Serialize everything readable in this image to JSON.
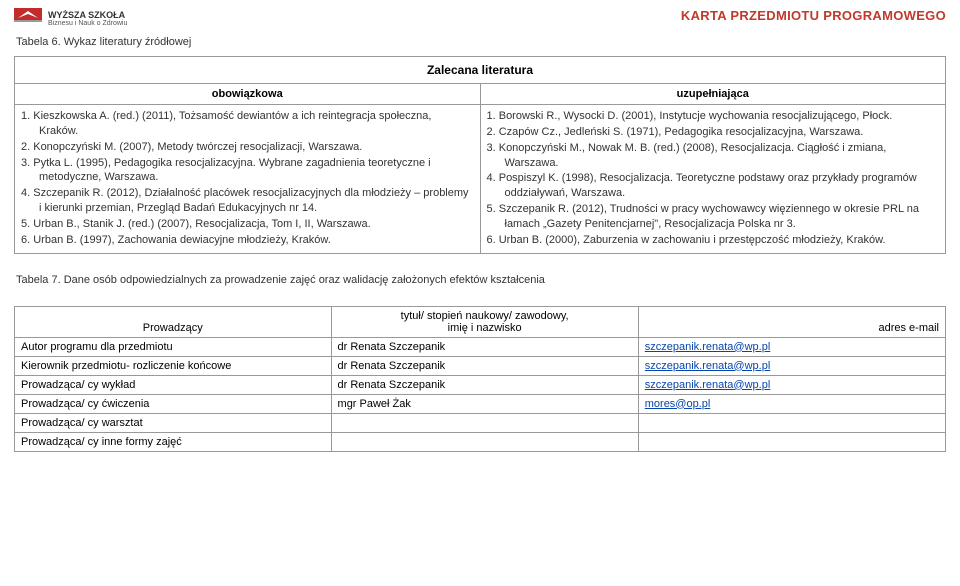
{
  "header": {
    "logo_line1": "WYŻSZA SZKOŁA",
    "logo_line2": "Biznesu i Nauk o Zdrowiu",
    "karta_title": "KARTA PRZEDMIOTU PROGRAMOWEGO"
  },
  "table6": {
    "caption": "Tabela 6. Wykaz literatury źródłowej",
    "main_header": "Zalecana literatura",
    "col1": "obowiązkowa",
    "col2": "uzupełniająca",
    "obowiazkowa": [
      "1.   Kieszkowska A. (red.) (2011), Tożsamość dewiantów a ich reintegracja społeczna, Kraków.",
      "2.   Konopczyński M. (2007), Metody twórczej resocjalizacji, Warszawa.",
      "3.   Pytka L. (1995), Pedagogika resocjalizacyjna. Wybrane zagadnienia teoretyczne i metodyczne, Warszawa.",
      "4.   Szczepanik R. (2012), Działalność placówek resocjalizacyjnych dla młodzieży – problemy i kierunki przemian, Przegląd Badań Edukacyjnych nr 14.",
      "5.   Urban B., Stanik J. (red.) (2007), Resocjalizacja, Tom I, II, Warszawa.",
      "6.   Urban B. (1997), Zachowania dewiacyjne młodzieży, Kraków."
    ],
    "uzupelniajaca": [
      "1.   Borowski R., Wysocki D. (2001), Instytucje wychowania resocjalizującego, Płock.",
      "2.   Czapów Cz., Jedleński S. (1971), Pedagogika resocjalizacyjna, Warszawa.",
      "3.   Konopczyński M., Nowak M. B. (red.) (2008), Resocjalizacja. Ciągłość i zmiana, Warszawa.",
      "4.   Pospiszyl K. (1998), Resocjalizacja. Teoretyczne podstawy oraz przykłady programów oddziaływań, Warszawa.",
      "5.   Szczepanik R. (2012), Trudności w pracy wychowawcy więziennego w okresie PRL na łamach „Gazety Penitencjarnej\", Resocjalizacja Polska nr 3.",
      "6.   Urban B. (2000), Zaburzenia w zachowaniu i przestępczość młodzieży, Kraków."
    ]
  },
  "table7": {
    "caption": "Tabela 7. Dane osób odpowiedzialnych za prowadzenie zajęć oraz walidację założonych efektów kształcenia",
    "col1_header": "Prowadzący",
    "col2_header_line1": "tytuł/ stopień naukowy/ zawodowy,",
    "col2_header_line2": "imię i nazwisko",
    "col3_header": "adres e-mail",
    "rows": [
      {
        "role": "Autor programu dla przedmiotu",
        "name": "dr Renata Szczepanik",
        "mail": "szczepanik.renata@wp.pl"
      },
      {
        "role": "Kierownik przedmiotu- rozliczenie końcowe",
        "name": "dr Renata Szczepanik",
        "mail": "szczepanik.renata@wp.pl"
      },
      {
        "role": "Prowadząca/ cy wykład",
        "name": "dr Renata Szczepanik",
        "mail": "szczepanik.renata@wp.pl"
      },
      {
        "role": "Prowadząca/ cy ćwiczenia",
        "name": "mgr Paweł Żak",
        "mail": "mores@op.pl"
      },
      {
        "role": "Prowadząca/ cy warsztat",
        "name": "",
        "mail": ""
      },
      {
        "role": "Prowadząca/ cy inne formy zajęć",
        "name": "",
        "mail": ""
      }
    ]
  },
  "colors": {
    "karta_red": "#c0392b",
    "link_blue": "#0645ad",
    "border": "#999999",
    "text": "#333333"
  }
}
